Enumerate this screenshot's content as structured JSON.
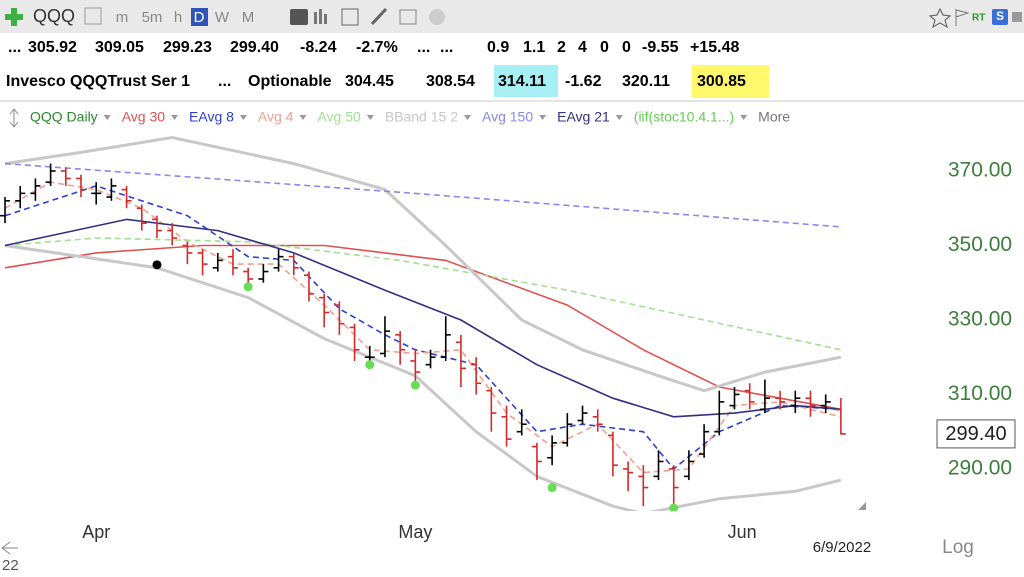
{
  "toolbar": {
    "symbol": "QQQ",
    "intervals": [
      "m",
      "5m",
      "h",
      "D",
      "W",
      "M"
    ],
    "active_interval": 3,
    "rt": "RT",
    "s": "S"
  },
  "quote": {
    "row1": [
      "...",
      "305.92",
      "309.05",
      "299.23",
      "299.40",
      "-8.24",
      "-2.7%",
      "...",
      "...",
      "0.9",
      "1.1",
      "2",
      "4",
      "0",
      "0",
      "-9.55",
      "+15.48"
    ],
    "row2": [
      "Invesco QQQTrust Ser 1",
      "...",
      "Optionable",
      "304.45",
      "308.54",
      "314.11",
      "-1.62",
      "320.11",
      "300.85"
    ]
  },
  "chart_data": {
    "type": "ohlc",
    "xlim": [
      -0.33,
      55.6
    ],
    "ylim": [
      278.7,
      388.8
    ],
    "xticks": [
      {
        "value": 6,
        "label": "Apr"
      },
      {
        "value": 27,
        "label": "May"
      },
      {
        "value": 48.5,
        "label": "Jun"
      }
    ],
    "yticks": [
      {
        "value": 290,
        "label": "290.00"
      },
      {
        "value": 310,
        "label": "310.00"
      },
      {
        "value": 330,
        "label": "330.00"
      },
      {
        "value": 350,
        "label": "350.00"
      },
      {
        "value": 370,
        "label": "370.00"
      }
    ],
    "grid": false,
    "up_color": "#000000",
    "down_color": "#d42a2a",
    "series": [
      {
        "name": "QQQ Daily",
        "color": "#2a8a2a",
        "bars": [
          [
            358,
            363,
            356,
            362
          ],
          [
            362,
            366,
            360,
            364
          ],
          [
            364,
            368,
            362,
            366
          ],
          [
            367,
            372,
            366,
            370
          ],
          [
            370,
            371,
            366,
            368
          ],
          [
            368,
            369,
            363,
            365
          ],
          [
            364,
            367,
            361,
            364
          ],
          [
            363,
            368,
            362,
            366
          ],
          [
            365,
            366,
            360,
            362
          ],
          [
            360,
            361,
            354,
            356
          ],
          [
            357,
            358,
            352,
            354
          ],
          [
            354,
            356,
            350,
            352
          ],
          [
            350,
            351,
            345,
            348
          ],
          [
            348,
            349,
            342,
            345
          ],
          [
            344,
            348,
            343,
            346
          ],
          [
            347,
            349,
            342,
            344
          ],
          [
            343,
            344,
            339,
            341
          ],
          [
            341,
            345,
            340,
            343
          ],
          [
            344,
            349,
            343,
            347
          ],
          [
            347,
            348,
            342,
            344
          ],
          [
            342,
            343,
            335,
            337
          ],
          [
            336,
            337,
            328,
            332
          ],
          [
            334,
            335,
            326,
            329
          ],
          [
            328,
            329,
            319,
            322
          ],
          [
            320,
            323,
            318,
            320
          ],
          [
            321,
            331,
            320,
            327
          ],
          [
            326,
            327,
            318,
            322
          ],
          [
            319,
            322,
            312,
            316
          ],
          [
            318,
            322,
            317,
            320
          ],
          [
            320,
            331,
            319,
            326
          ],
          [
            324,
            326,
            312,
            317
          ],
          [
            318,
            320,
            310,
            313
          ],
          [
            311,
            312,
            300,
            305
          ],
          [
            304,
            307,
            296,
            298
          ],
          [
            300,
            306,
            299,
            302
          ],
          [
            296,
            297,
            287,
            292
          ],
          [
            293,
            299,
            291,
            297
          ],
          [
            297,
            305,
            296,
            302
          ],
          [
            303,
            307,
            302,
            305
          ],
          [
            304,
            306,
            300,
            302
          ],
          [
            299,
            300,
            288,
            291
          ],
          [
            290,
            292,
            284,
            289
          ],
          [
            288,
            291,
            280,
            285
          ],
          [
            288,
            295,
            287,
            292
          ],
          [
            290,
            291,
            280,
            285
          ],
          [
            288,
            295,
            287,
            292
          ],
          [
            294,
            302,
            293,
            300
          ],
          [
            300,
            311,
            299,
            308
          ],
          [
            307,
            312,
            306,
            310
          ],
          [
            311,
            313,
            306,
            308
          ],
          [
            306,
            314,
            305,
            309
          ],
          [
            309,
            311,
            306,
            308
          ],
          [
            307,
            311,
            305,
            309
          ],
          [
            309,
            311,
            304,
            307
          ],
          [
            307,
            310,
            305,
            308
          ],
          [
            305.92,
            309.05,
            299.23,
            299.4
          ]
        ]
      },
      {
        "name": "Avg 30",
        "color": "#e05050",
        "dash": false,
        "x": [
          0,
          6,
          13,
          21,
          29,
          37,
          42,
          47,
          51,
          55
        ],
        "values": [
          344,
          348,
          350,
          350,
          346,
          334,
          322,
          312,
          309,
          306
        ]
      },
      {
        "name": "EAvg 8",
        "color": "#2e3fd0",
        "dash": true,
        "x": [
          0,
          6,
          12,
          16,
          19,
          22,
          25,
          27,
          31,
          35,
          38,
          42,
          44,
          47,
          51,
          55
        ],
        "values": [
          358,
          366,
          358,
          347,
          346,
          333,
          326,
          322,
          318,
          300,
          302,
          300,
          290,
          300,
          307,
          306
        ]
      },
      {
        "name": "Avg 4",
        "color": "#f0a090",
        "dash": true,
        "x": [
          0,
          3,
          6,
          9,
          12,
          15,
          18,
          21,
          24,
          27,
          30,
          33,
          36,
          39,
          42,
          45,
          48,
          51,
          55
        ],
        "values": [
          360,
          367,
          365,
          360,
          351,
          345,
          345,
          334,
          322,
          321,
          322,
          305,
          296,
          302,
          289,
          290,
          307,
          308,
          304
        ]
      },
      {
        "name": "Avg 50",
        "color": "#a0e090",
        "dash": true,
        "x": [
          0,
          6,
          16,
          26,
          37,
          46,
          55
        ],
        "values": [
          350,
          352,
          351,
          346,
          338,
          330,
          322
        ]
      },
      {
        "name": "BBand 15 2",
        "color": "#c8c8c8",
        "dash": false,
        "x": [
          0,
          5,
          11,
          19,
          25,
          29,
          34,
          38,
          43,
          46,
          50,
          55
        ],
        "values": [
          372,
          375,
          379,
          372,
          365,
          350,
          330,
          322,
          315,
          311,
          316,
          320
        ],
        "lower_x": [
          0,
          10,
          16,
          21,
          27,
          31,
          35,
          40,
          42,
          47,
          52,
          55
        ],
        "lower": [
          350,
          344,
          336,
          325,
          315,
          300,
          288,
          280,
          278,
          282,
          284,
          287
        ]
      },
      {
        "name": "Avg 150",
        "color": "#8888ee",
        "dash": true,
        "x": [
          0,
          27,
          55
        ],
        "values": [
          372,
          364,
          355
        ]
      },
      {
        "name": "EAvg 21",
        "color": "#303080",
        "dash": false,
        "x": [
          0,
          8,
          14,
          19,
          25,
          30,
          35,
          40,
          44,
          48,
          52,
          55
        ],
        "values": [
          350,
          357,
          354,
          348,
          338,
          330,
          318,
          309,
          304,
          305,
          307,
          306
        ]
      },
      {
        "name": "(iif(stoc10.4.1...)",
        "color": "#66cc55",
        "x": [
          10,
          16,
          24,
          27,
          36,
          44
        ],
        "values": [
          344.8,
          338.9,
          318,
          312.5,
          285,
          279.5
        ],
        "colors": [
          "#000000",
          "#66dd55",
          "#66dd55",
          "#66dd55",
          "#66dd55",
          "#66dd55"
        ]
      }
    ],
    "more": "More",
    "last_price_label": "299.40",
    "date": "6/9/2022",
    "scale_mode": "Log",
    "corner_label": "22"
  }
}
